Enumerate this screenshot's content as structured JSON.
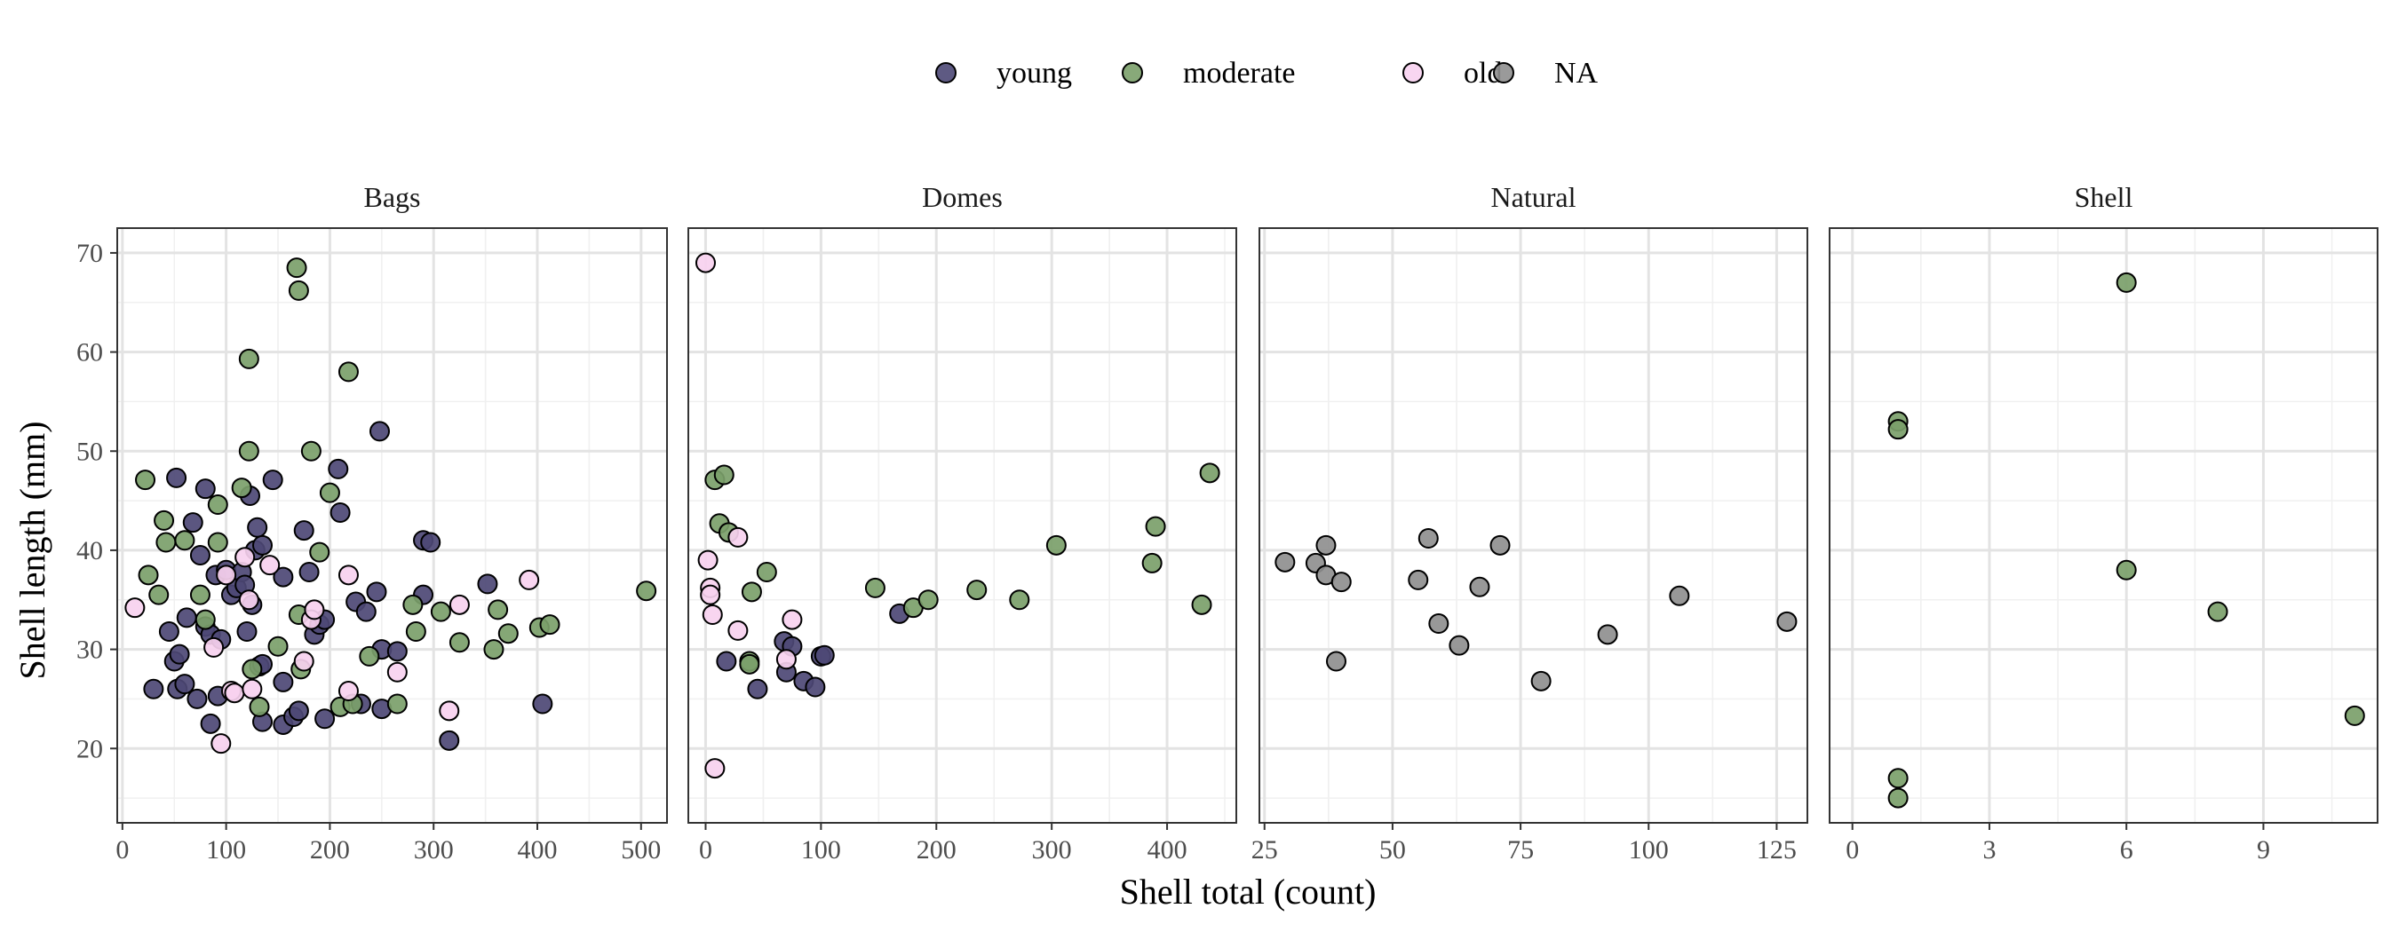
{
  "chart_data": {
    "type": "scatter",
    "xlabel": "Shell total (count)",
    "ylabel": "Shell length (mm)",
    "ylim": [
      12.5,
      72.5
    ],
    "yticks": [
      20,
      30,
      40,
      50,
      60,
      70
    ],
    "grid": true,
    "legend_position": "top",
    "legend": [
      {
        "key": "young",
        "label": "young",
        "color": "#4d4875"
      },
      {
        "key": "moderate",
        "label": "moderate",
        "color": "#7ba06a"
      },
      {
        "key": "old",
        "label": "old",
        "color": "#f7d1ef"
      },
      {
        "key": "na",
        "label": "NA",
        "color": "#8f8f8f"
      }
    ],
    "panels": [
      {
        "title": "Bags",
        "xlim": [
          -5,
          525
        ],
        "xticks": [
          0,
          100,
          200,
          300,
          400,
          500
        ],
        "points": [
          {
            "x": 30,
            "y": 26,
            "g": "young"
          },
          {
            "x": 45,
            "y": 31.8,
            "g": "young"
          },
          {
            "x": 50,
            "y": 28.8,
            "g": "young"
          },
          {
            "x": 52,
            "y": 47.3,
            "g": "young"
          },
          {
            "x": 53,
            "y": 26,
            "g": "young"
          },
          {
            "x": 55,
            "y": 29.5,
            "g": "young"
          },
          {
            "x": 60,
            "y": 26.5,
            "g": "young"
          },
          {
            "x": 62,
            "y": 33.2,
            "g": "young"
          },
          {
            "x": 68,
            "y": 42.8,
            "g": "young"
          },
          {
            "x": 72,
            "y": 25,
            "g": "young"
          },
          {
            "x": 75,
            "y": 39.5,
            "g": "young"
          },
          {
            "x": 80,
            "y": 46.2,
            "g": "young"
          },
          {
            "x": 80,
            "y": 32.3,
            "g": "young"
          },
          {
            "x": 85,
            "y": 31.5,
            "g": "young"
          },
          {
            "x": 85,
            "y": 22.5,
            "g": "young"
          },
          {
            "x": 90,
            "y": 37.5,
            "g": "young"
          },
          {
            "x": 92,
            "y": 25.3,
            "g": "young"
          },
          {
            "x": 95,
            "y": 31,
            "g": "young"
          },
          {
            "x": 100,
            "y": 38,
            "g": "young"
          },
          {
            "x": 105,
            "y": 35.5,
            "g": "young"
          },
          {
            "x": 110,
            "y": 36.2,
            "g": "young"
          },
          {
            "x": 115,
            "y": 37.8,
            "g": "young"
          },
          {
            "x": 118,
            "y": 36.5,
            "g": "young"
          },
          {
            "x": 120,
            "y": 31.8,
            "g": "young"
          },
          {
            "x": 123,
            "y": 45.5,
            "g": "young"
          },
          {
            "x": 125,
            "y": 34.5,
            "g": "young"
          },
          {
            "x": 128,
            "y": 40,
            "g": "young"
          },
          {
            "x": 130,
            "y": 42.3,
            "g": "young"
          },
          {
            "x": 132,
            "y": 28.3,
            "g": "young"
          },
          {
            "x": 135,
            "y": 28.5,
            "g": "young"
          },
          {
            "x": 135,
            "y": 22.7,
            "g": "young"
          },
          {
            "x": 135,
            "y": 40.5,
            "g": "young"
          },
          {
            "x": 145,
            "y": 47.1,
            "g": "young"
          },
          {
            "x": 155,
            "y": 37.3,
            "g": "young"
          },
          {
            "x": 155,
            "y": 26.7,
            "g": "young"
          },
          {
            "x": 155,
            "y": 22.4,
            "g": "young"
          },
          {
            "x": 165,
            "y": 23.2,
            "g": "young"
          },
          {
            "x": 170,
            "y": 23.8,
            "g": "young"
          },
          {
            "x": 175,
            "y": 42,
            "g": "young"
          },
          {
            "x": 180,
            "y": 37.8,
            "g": "young"
          },
          {
            "x": 185,
            "y": 31.5,
            "g": "young"
          },
          {
            "x": 190,
            "y": 32.5,
            "g": "young"
          },
          {
            "x": 195,
            "y": 23,
            "g": "young"
          },
          {
            "x": 195,
            "y": 33,
            "g": "young"
          },
          {
            "x": 208,
            "y": 48.2,
            "g": "young"
          },
          {
            "x": 210,
            "y": 43.8,
            "g": "young"
          },
          {
            "x": 225,
            "y": 34.8,
            "g": "young"
          },
          {
            "x": 230,
            "y": 24.5,
            "g": "young"
          },
          {
            "x": 235,
            "y": 33.8,
            "g": "young"
          },
          {
            "x": 245,
            "y": 35.8,
            "g": "young"
          },
          {
            "x": 248,
            "y": 52,
            "g": "young"
          },
          {
            "x": 250,
            "y": 30,
            "g": "young"
          },
          {
            "x": 250,
            "y": 24,
            "g": "young"
          },
          {
            "x": 265,
            "y": 29.8,
            "g": "young"
          },
          {
            "x": 290,
            "y": 41,
            "g": "young"
          },
          {
            "x": 290,
            "y": 35.5,
            "g": "young"
          },
          {
            "x": 297,
            "y": 40.8,
            "g": "young"
          },
          {
            "x": 315,
            "y": 20.8,
            "g": "young"
          },
          {
            "x": 352,
            "y": 36.6,
            "g": "young"
          },
          {
            "x": 405,
            "y": 24.5,
            "g": "young"
          },
          {
            "x": 22,
            "y": 47.1,
            "g": "moderate"
          },
          {
            "x": 25,
            "y": 37.5,
            "g": "moderate"
          },
          {
            "x": 35,
            "y": 35.5,
            "g": "moderate"
          },
          {
            "x": 40,
            "y": 43,
            "g": "moderate"
          },
          {
            "x": 42,
            "y": 40.8,
            "g": "moderate"
          },
          {
            "x": 60,
            "y": 41,
            "g": "moderate"
          },
          {
            "x": 75,
            "y": 35.5,
            "g": "moderate"
          },
          {
            "x": 80,
            "y": 33,
            "g": "moderate"
          },
          {
            "x": 92,
            "y": 44.6,
            "g": "moderate"
          },
          {
            "x": 92,
            "y": 40.8,
            "g": "moderate"
          },
          {
            "x": 115,
            "y": 46.3,
            "g": "moderate"
          },
          {
            "x": 122,
            "y": 59.3,
            "g": "moderate"
          },
          {
            "x": 122,
            "y": 50,
            "g": "moderate"
          },
          {
            "x": 125,
            "y": 28,
            "g": "moderate"
          },
          {
            "x": 132,
            "y": 24.2,
            "g": "moderate"
          },
          {
            "x": 150,
            "y": 30.3,
            "g": "moderate"
          },
          {
            "x": 168,
            "y": 68.5,
            "g": "moderate"
          },
          {
            "x": 170,
            "y": 66.2,
            "g": "moderate"
          },
          {
            "x": 170,
            "y": 33.5,
            "g": "moderate"
          },
          {
            "x": 172,
            "y": 28,
            "g": "moderate"
          },
          {
            "x": 182,
            "y": 50,
            "g": "moderate"
          },
          {
            "x": 190,
            "y": 39.8,
            "g": "moderate"
          },
          {
            "x": 200,
            "y": 45.8,
            "g": "moderate"
          },
          {
            "x": 210,
            "y": 24.2,
            "g": "moderate"
          },
          {
            "x": 218,
            "y": 58,
            "g": "moderate"
          },
          {
            "x": 222,
            "y": 24.5,
            "g": "moderate"
          },
          {
            "x": 238,
            "y": 29.3,
            "g": "moderate"
          },
          {
            "x": 265,
            "y": 24.5,
            "g": "moderate"
          },
          {
            "x": 280,
            "y": 34.5,
            "g": "moderate"
          },
          {
            "x": 283,
            "y": 31.8,
            "g": "moderate"
          },
          {
            "x": 307,
            "y": 33.8,
            "g": "moderate"
          },
          {
            "x": 325,
            "y": 30.7,
            "g": "moderate"
          },
          {
            "x": 358,
            "y": 30,
            "g": "moderate"
          },
          {
            "x": 362,
            "y": 34,
            "g": "moderate"
          },
          {
            "x": 372,
            "y": 31.6,
            "g": "moderate"
          },
          {
            "x": 402,
            "y": 32.2,
            "g": "moderate"
          },
          {
            "x": 412,
            "y": 32.5,
            "g": "moderate"
          },
          {
            "x": 505,
            "y": 35.9,
            "g": "moderate"
          },
          {
            "x": 12,
            "y": 34.2,
            "g": "old"
          },
          {
            "x": 88,
            "y": 30.2,
            "g": "old"
          },
          {
            "x": 95,
            "y": 20.5,
            "g": "old"
          },
          {
            "x": 100,
            "y": 37.5,
            "g": "old"
          },
          {
            "x": 105,
            "y": 25.8,
            "g": "old"
          },
          {
            "x": 108,
            "y": 25.6,
            "g": "old"
          },
          {
            "x": 118,
            "y": 39.3,
            "g": "old"
          },
          {
            "x": 122,
            "y": 35,
            "g": "old"
          },
          {
            "x": 125,
            "y": 26,
            "g": "old"
          },
          {
            "x": 142,
            "y": 38.5,
            "g": "old"
          },
          {
            "x": 175,
            "y": 28.8,
            "g": "old"
          },
          {
            "x": 182,
            "y": 33,
            "g": "old"
          },
          {
            "x": 185,
            "y": 34,
            "g": "old"
          },
          {
            "x": 218,
            "y": 37.5,
            "g": "old"
          },
          {
            "x": 218,
            "y": 25.8,
            "g": "old"
          },
          {
            "x": 265,
            "y": 27.7,
            "g": "old"
          },
          {
            "x": 315,
            "y": 23.8,
            "g": "old"
          },
          {
            "x": 325,
            "y": 34.5,
            "g": "old"
          },
          {
            "x": 392,
            "y": 37,
            "g": "old"
          }
        ]
      },
      {
        "title": "Domes",
        "xlim": [
          -15,
          460
        ],
        "xticks": [
          0,
          100,
          200,
          300,
          400
        ],
        "points": [
          {
            "x": 18,
            "y": 28.8,
            "g": "young"
          },
          {
            "x": 45,
            "y": 26,
            "g": "young"
          },
          {
            "x": 68,
            "y": 30.8,
            "g": "young"
          },
          {
            "x": 70,
            "y": 27.7,
            "g": "young"
          },
          {
            "x": 75,
            "y": 30.3,
            "g": "young"
          },
          {
            "x": 85,
            "y": 26.8,
            "g": "young"
          },
          {
            "x": 95,
            "y": 26.2,
            "g": "young"
          },
          {
            "x": 100,
            "y": 29.3,
            "g": "young"
          },
          {
            "x": 103,
            "y": 29.4,
            "g": "young"
          },
          {
            "x": 168,
            "y": 33.6,
            "g": "young"
          },
          {
            "x": 8,
            "y": 47.1,
            "g": "moderate"
          },
          {
            "x": 12,
            "y": 42.7,
            "g": "moderate"
          },
          {
            "x": 16,
            "y": 47.6,
            "g": "moderate"
          },
          {
            "x": 20,
            "y": 41.8,
            "g": "moderate"
          },
          {
            "x": 38,
            "y": 28.8,
            "g": "moderate"
          },
          {
            "x": 38,
            "y": 28.5,
            "g": "moderate"
          },
          {
            "x": 40,
            "y": 35.8,
            "g": "moderate"
          },
          {
            "x": 53,
            "y": 37.8,
            "g": "moderate"
          },
          {
            "x": 147,
            "y": 36.2,
            "g": "moderate"
          },
          {
            "x": 180,
            "y": 34.2,
            "g": "moderate"
          },
          {
            "x": 193,
            "y": 35,
            "g": "moderate"
          },
          {
            "x": 235,
            "y": 36,
            "g": "moderate"
          },
          {
            "x": 272,
            "y": 35,
            "g": "moderate"
          },
          {
            "x": 304,
            "y": 40.5,
            "g": "moderate"
          },
          {
            "x": 387,
            "y": 38.7,
            "g": "moderate"
          },
          {
            "x": 390,
            "y": 42.4,
            "g": "moderate"
          },
          {
            "x": 430,
            "y": 34.5,
            "g": "moderate"
          },
          {
            "x": 437,
            "y": 47.8,
            "g": "moderate"
          },
          {
            "x": 0,
            "y": 69,
            "g": "old"
          },
          {
            "x": 2,
            "y": 39,
            "g": "old"
          },
          {
            "x": 4,
            "y": 36.2,
            "g": "old"
          },
          {
            "x": 4,
            "y": 35.5,
            "g": "old"
          },
          {
            "x": 6,
            "y": 33.5,
            "g": "old"
          },
          {
            "x": 8,
            "y": 18,
            "g": "old"
          },
          {
            "x": 28,
            "y": 41.3,
            "g": "old"
          },
          {
            "x": 28,
            "y": 31.9,
            "g": "old"
          },
          {
            "x": 70,
            "y": 29,
            "g": "old"
          },
          {
            "x": 75,
            "y": 33,
            "g": "old"
          }
        ]
      },
      {
        "title": "Natural",
        "xlim": [
          24,
          131
        ],
        "xticks": [
          25,
          50,
          75,
          100,
          125
        ],
        "points": [
          {
            "x": 29,
            "y": 38.8,
            "g": "na"
          },
          {
            "x": 35,
            "y": 38.7,
            "g": "na"
          },
          {
            "x": 37,
            "y": 40.5,
            "g": "na"
          },
          {
            "x": 37,
            "y": 37.5,
            "g": "na"
          },
          {
            "x": 39,
            "y": 28.8,
            "g": "na"
          },
          {
            "x": 40,
            "y": 36.8,
            "g": "na"
          },
          {
            "x": 55,
            "y": 37,
            "g": "na"
          },
          {
            "x": 57,
            "y": 41.2,
            "g": "na"
          },
          {
            "x": 59,
            "y": 32.6,
            "g": "na"
          },
          {
            "x": 63,
            "y": 30.4,
            "g": "na"
          },
          {
            "x": 67,
            "y": 36.3,
            "g": "na"
          },
          {
            "x": 71,
            "y": 40.5,
            "g": "na"
          },
          {
            "x": 79,
            "y": 26.8,
            "g": "na"
          },
          {
            "x": 92,
            "y": 31.5,
            "g": "na"
          },
          {
            "x": 106,
            "y": 35.4,
            "g": "na"
          },
          {
            "x": 127,
            "y": 32.8,
            "g": "na"
          }
        ]
      },
      {
        "title": "Shell",
        "xlim": [
          -0.5,
          11.5
        ],
        "xticks": [
          0,
          3,
          6,
          9
        ],
        "points": [
          {
            "x": 1,
            "y": 53,
            "g": "moderate"
          },
          {
            "x": 1,
            "y": 52.2,
            "g": "moderate"
          },
          {
            "x": 1,
            "y": 17,
            "g": "moderate"
          },
          {
            "x": 1,
            "y": 15,
            "g": "moderate"
          },
          {
            "x": 6,
            "y": 67,
            "g": "moderate"
          },
          {
            "x": 6,
            "y": 38,
            "g": "moderate"
          },
          {
            "x": 8,
            "y": 33.8,
            "g": "moderate"
          },
          {
            "x": 11,
            "y": 23.3,
            "g": "moderate"
          }
        ]
      }
    ]
  }
}
